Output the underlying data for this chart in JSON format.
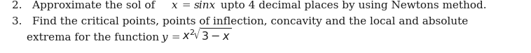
{
  "bg_color": "#ffffff",
  "text_color": "#1a1a1a",
  "font_size": 11.0,
  "fig_width": 7.58,
  "fig_height": 0.76,
  "line1_normal1": "2.   Approximate the sol of ",
  "line1_italic1": "x",
  "line1_normal2": " = ",
  "line1_italic2": "sinx",
  "line1_normal3": " upto 4 decimal places by using Newtons method.",
  "line2": "3.   Find the critical points, points of inflection, concavity and the local and absolute",
  "line3_normal1": "      extrema for the function ",
  "line3_italic1": "y",
  "line3_normal2": " = ",
  "line3_math": "$x^2\\sqrt{3-x}$"
}
